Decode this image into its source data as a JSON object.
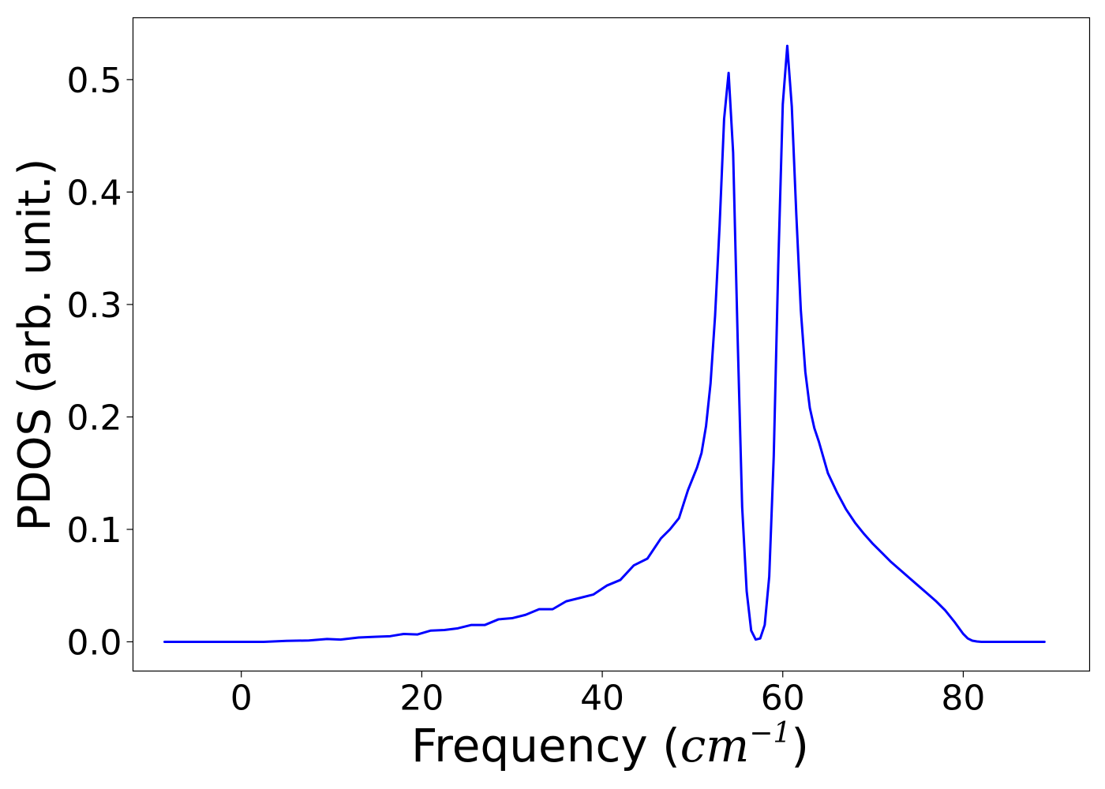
{
  "chart_data": {
    "type": "line",
    "title": "",
    "xlabel": "Frequency",
    "xlabel_unit": {
      "open": "(",
      "base": "cm",
      "exponent": "−1",
      "close": ")"
    },
    "ylabel": "PDOS (arb. unit.)",
    "xlim": [
      -12,
      94
    ],
    "ylim": [
      -0.026,
      0.555
    ],
    "x_ticks": [
      0,
      20,
      40,
      60,
      80
    ],
    "x_tick_labels": [
      "0",
      "20",
      "40",
      "60",
      "80"
    ],
    "y_ticks": [
      0.0,
      0.1,
      0.2,
      0.3,
      0.4,
      0.5
    ],
    "y_tick_labels": [
      "0.0",
      "0.1",
      "0.2",
      "0.3",
      "0.4",
      "0.5"
    ],
    "grid": false,
    "legend": "none",
    "series": [
      {
        "color": "#0000ff",
        "x": [
          -8.5,
          0,
          2.5,
          5,
          7.5,
          9.5,
          11,
          13,
          15,
          16.5,
          18,
          19.5,
          21,
          22.5,
          24,
          25.5,
          27,
          28.5,
          30,
          31.5,
          33,
          34.5,
          36,
          37.5,
          39,
          40.5,
          42,
          43.5,
          45,
          46.5,
          47.5,
          48.5,
          49.5,
          50.5,
          51,
          51.5,
          52,
          52.5,
          53,
          53.5,
          54,
          54.5,
          55,
          55.5,
          56,
          56.5,
          57,
          57.5,
          58,
          58.5,
          59,
          59.5,
          60,
          60.5,
          61,
          61.5,
          62,
          62.5,
          63,
          63.5,
          64,
          65,
          66,
          67,
          68,
          69,
          70,
          71,
          72,
          73,
          74,
          75,
          76,
          77,
          78,
          79,
          80,
          80.5,
          81,
          81.5,
          82,
          82.5,
          83,
          85,
          89
        ],
        "y": [
          0.0,
          0.0,
          0.0,
          0.0008,
          0.0012,
          0.0025,
          0.002,
          0.0038,
          0.0045,
          0.005,
          0.007,
          0.0065,
          0.01,
          0.0105,
          0.012,
          0.015,
          0.015,
          0.02,
          0.021,
          0.024,
          0.029,
          0.029,
          0.036,
          0.039,
          0.042,
          0.05,
          0.055,
          0.068,
          0.074,
          0.092,
          0.1,
          0.11,
          0.135,
          0.155,
          0.168,
          0.192,
          0.23,
          0.29,
          0.37,
          0.465,
          0.506,
          0.435,
          0.27,
          0.12,
          0.045,
          0.01,
          0.002,
          0.003,
          0.015,
          0.058,
          0.165,
          0.335,
          0.478,
          0.53,
          0.476,
          0.38,
          0.295,
          0.24,
          0.208,
          0.19,
          0.178,
          0.15,
          0.133,
          0.118,
          0.106,
          0.096,
          0.087,
          0.079,
          0.071,
          0.064,
          0.057,
          0.05,
          0.043,
          0.036,
          0.028,
          0.018,
          0.007,
          0.003,
          0.001,
          0.0003,
          0.0,
          0.0,
          0.0,
          0.0,
          0.0
        ]
      }
    ]
  }
}
